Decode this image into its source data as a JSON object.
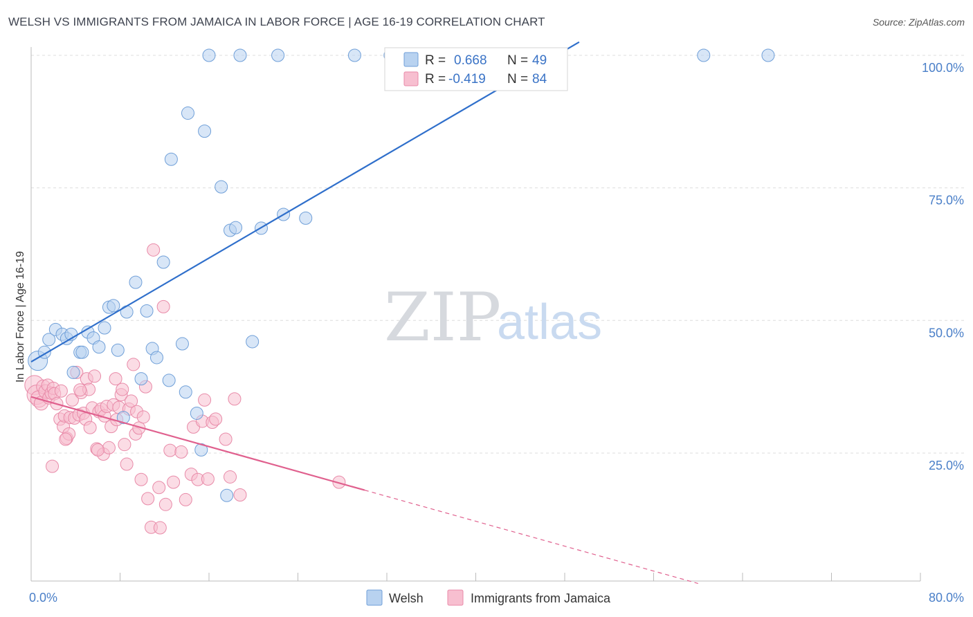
{
  "header": {
    "title": "WELSH VS IMMIGRANTS FROM JAMAICA IN LABOR FORCE | AGE 16-19 CORRELATION CHART",
    "source": "Source: ZipAtlas.com"
  },
  "watermark": {
    "zip": "ZIP",
    "atlas": "atlas"
  },
  "colors": {
    "welsh_fill": "#b8d2f0",
    "welsh_stroke": "#6f9fd8",
    "welsh_line": "#2f6fcb",
    "jamaica_fill": "#f7bfd0",
    "jamaica_stroke": "#e88aa8",
    "jamaica_line": "#e0608e",
    "tick_color": "#4a7fc8",
    "grid": "#dddddd"
  },
  "stats": {
    "welsh": {
      "r_label": "R =",
      "r_value": "0.668",
      "n_label": "N =",
      "n_value": "49"
    },
    "jamaica": {
      "r_label": "R =",
      "r_value": "-0.419",
      "n_label": "N =",
      "n_value": "84"
    }
  },
  "chart_data": {
    "type": "scatter",
    "title": "WELSH VS IMMIGRANTS FROM JAMAICA IN LABOR FORCE | AGE 16-19 CORRELATION CHART",
    "xlabel": "",
    "ylabel": "In Labor Force | Age 16-19",
    "xlim": [
      0,
      80
    ],
    "ylim": [
      0,
      105
    ],
    "x_ticks": [
      {
        "value": 0,
        "label": "0.0%"
      },
      {
        "value": 80,
        "label": "80.0%"
      }
    ],
    "y_ticks": [
      {
        "value": 25,
        "label": "25.0%"
      },
      {
        "value": 50,
        "label": "50.0%"
      },
      {
        "value": 75,
        "label": "75.0%"
      },
      {
        "value": 100,
        "label": "100.0%"
      }
    ],
    "x_minor_ticks": [
      8,
      16,
      24,
      32,
      40,
      48,
      56,
      64,
      72
    ],
    "legend": [
      "Welsh",
      "Immigrants from Jamaica"
    ],
    "series": [
      {
        "name": "Welsh",
        "trend": {
          "x0": 0,
          "y0": 42.2,
          "x1": 49.3,
          "y1": 102.5,
          "dash_to": null
        },
        "points": [
          [
            0.6,
            42.4,
            14
          ],
          [
            1.2,
            44.0,
            9
          ],
          [
            1.6,
            46.4,
            9
          ],
          [
            2.2,
            48.3,
            9
          ],
          [
            2.8,
            47.4,
            9
          ],
          [
            3.2,
            46.6,
            9
          ],
          [
            3.6,
            47.4,
            9
          ],
          [
            4.4,
            44.0,
            9
          ],
          [
            4.6,
            44.0,
            9
          ],
          [
            5.1,
            47.8,
            9
          ],
          [
            5.6,
            46.7,
            9
          ],
          [
            6.1,
            45.0,
            9
          ],
          [
            6.6,
            48.6,
            9
          ],
          [
            7.0,
            52.5,
            9
          ],
          [
            7.4,
            52.8,
            9
          ],
          [
            7.8,
            44.4,
            9
          ],
          [
            8.6,
            51.6,
            9
          ],
          [
            9.4,
            57.2,
            9
          ],
          [
            9.9,
            39.0,
            9
          ],
          [
            10.4,
            51.8,
            9
          ],
          [
            10.9,
            44.7,
            9
          ],
          [
            11.3,
            43.0,
            9
          ],
          [
            11.9,
            61.0,
            9
          ],
          [
            12.4,
            38.7,
            9
          ],
          [
            12.6,
            80.4,
            9
          ],
          [
            13.6,
            45.6,
            9
          ],
          [
            13.9,
            36.5,
            9
          ],
          [
            14.1,
            89.1,
            9
          ],
          [
            14.9,
            32.5,
            9
          ],
          [
            15.3,
            25.6,
            9
          ],
          [
            15.6,
            85.7,
            9
          ],
          [
            16.0,
            100.0,
            9
          ],
          [
            17.1,
            75.2,
            9
          ],
          [
            17.6,
            17.0,
            9
          ],
          [
            17.9,
            67.0,
            9
          ],
          [
            18.4,
            67.5,
            9
          ],
          [
            18.8,
            100.0,
            9
          ],
          [
            19.9,
            46.0,
            9
          ],
          [
            20.7,
            67.4,
            9
          ],
          [
            22.2,
            100.0,
            9
          ],
          [
            22.7,
            70.0,
            9
          ],
          [
            24.7,
            69.3,
            9
          ],
          [
            29.1,
            100.0,
            9
          ],
          [
            32.3,
            100.0,
            9
          ],
          [
            35.8,
            100.0,
            9
          ],
          [
            60.5,
            100.0,
            9
          ],
          [
            66.3,
            100.0,
            9
          ],
          [
            8.3,
            31.7,
            9
          ],
          [
            3.8,
            40.2,
            9
          ]
        ]
      },
      {
        "name": "Immigrants from Jamaica",
        "trend": {
          "x0": 0,
          "y0": 35.6,
          "x1": 30.0,
          "y1": 18.0,
          "dash_to": {
            "x": 60,
            "y": 0.4
          }
        },
        "points": [
          [
            0.3,
            37.8,
            14
          ],
          [
            0.5,
            36.0,
            14
          ],
          [
            0.7,
            35.2,
            12
          ],
          [
            0.9,
            34.4,
            10
          ],
          [
            1.1,
            37.5,
            10
          ],
          [
            1.3,
            36.6,
            10
          ],
          [
            1.5,
            37.8,
            9
          ],
          [
            1.6,
            35.4,
            9
          ],
          [
            1.8,
            36.3,
            9
          ],
          [
            2.0,
            37.2,
            9
          ],
          [
            2.1,
            36.2,
            9
          ],
          [
            2.3,
            34.3,
            9
          ],
          [
            2.6,
            31.4,
            9
          ],
          [
            2.7,
            36.7,
            9
          ],
          [
            2.9,
            30.0,
            9
          ],
          [
            3.0,
            32.0,
            9
          ],
          [
            3.2,
            27.8,
            9
          ],
          [
            3.4,
            28.6,
            9
          ],
          [
            3.5,
            31.7,
            9
          ],
          [
            3.7,
            35.0,
            9
          ],
          [
            3.9,
            31.6,
            9
          ],
          [
            4.1,
            40.2,
            9
          ],
          [
            4.3,
            32.2,
            9
          ],
          [
            4.5,
            36.4,
            9
          ],
          [
            4.7,
            32.5,
            9
          ],
          [
            4.9,
            31.4,
            9
          ],
          [
            5.0,
            39.0,
            9
          ],
          [
            5.2,
            37.0,
            9
          ],
          [
            5.3,
            29.8,
            9
          ],
          [
            5.5,
            33.5,
            9
          ],
          [
            5.7,
            39.5,
            9
          ],
          [
            5.9,
            25.8,
            9
          ],
          [
            6.1,
            32.8,
            9
          ],
          [
            6.3,
            33.3,
            9
          ],
          [
            6.5,
            24.8,
            9
          ],
          [
            6.6,
            32.0,
            9
          ],
          [
            6.8,
            33.8,
            9
          ],
          [
            7.0,
            26.0,
            9
          ],
          [
            7.2,
            30.0,
            9
          ],
          [
            7.4,
            34.1,
            9
          ],
          [
            7.6,
            39.0,
            9
          ],
          [
            7.7,
            31.3,
            9
          ],
          [
            7.9,
            33.6,
            9
          ],
          [
            8.1,
            36.0,
            9
          ],
          [
            8.2,
            37.0,
            9
          ],
          [
            8.4,
            26.6,
            9
          ],
          [
            8.6,
            22.9,
            9
          ],
          [
            8.8,
            33.3,
            9
          ],
          [
            9.0,
            34.8,
            9
          ],
          [
            9.2,
            41.7,
            9
          ],
          [
            9.4,
            28.6,
            9
          ],
          [
            9.5,
            32.8,
            9
          ],
          [
            9.7,
            29.7,
            9
          ],
          [
            9.9,
            20.0,
            9
          ],
          [
            10.1,
            31.8,
            9
          ],
          [
            10.3,
            37.5,
            9
          ],
          [
            10.5,
            16.4,
            9
          ],
          [
            10.8,
            11.0,
            9
          ],
          [
            11.0,
            63.3,
            9
          ],
          [
            11.5,
            18.5,
            9
          ],
          [
            11.9,
            52.6,
            9
          ],
          [
            12.1,
            15.3,
            9
          ],
          [
            12.5,
            25.5,
            9
          ],
          [
            12.8,
            19.5,
            9
          ],
          [
            13.5,
            25.2,
            9
          ],
          [
            13.9,
            16.2,
            9
          ],
          [
            14.4,
            21.0,
            9
          ],
          [
            14.6,
            29.9,
            9
          ],
          [
            15.0,
            20.0,
            9
          ],
          [
            15.4,
            31.0,
            9
          ],
          [
            15.6,
            35.0,
            9
          ],
          [
            15.9,
            20.1,
            9
          ],
          [
            16.3,
            30.8,
            9
          ],
          [
            16.6,
            31.4,
            9
          ],
          [
            17.5,
            27.6,
            9
          ],
          [
            17.9,
            20.5,
            9
          ],
          [
            18.3,
            35.2,
            9
          ],
          [
            18.8,
            17.1,
            9
          ],
          [
            27.7,
            19.5,
            9
          ],
          [
            11.6,
            10.9,
            9
          ],
          [
            6.0,
            25.6,
            9
          ],
          [
            3.1,
            27.6,
            9
          ],
          [
            1.9,
            22.5,
            9
          ],
          [
            4.4,
            36.9,
            9
          ]
        ]
      }
    ]
  }
}
